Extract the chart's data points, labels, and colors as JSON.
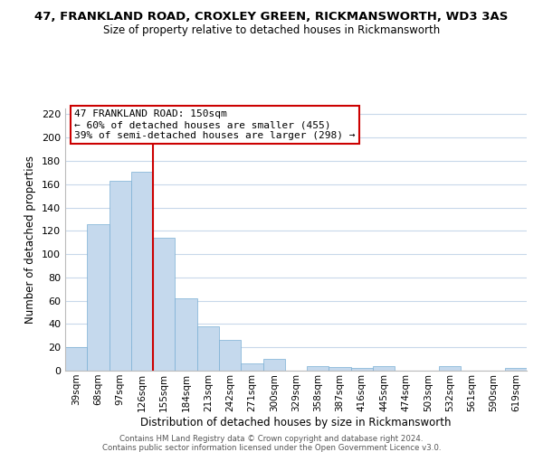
{
  "title": "47, FRANKLAND ROAD, CROXLEY GREEN, RICKMANSWORTH, WD3 3AS",
  "subtitle": "Size of property relative to detached houses in Rickmansworth",
  "xlabel": "Distribution of detached houses by size in Rickmansworth",
  "ylabel": "Number of detached properties",
  "bar_color": "#c5d9ed",
  "bar_edge_color": "#7aafd4",
  "categories": [
    "39sqm",
    "68sqm",
    "97sqm",
    "126sqm",
    "155sqm",
    "184sqm",
    "213sqm",
    "242sqm",
    "271sqm",
    "300sqm",
    "329sqm",
    "358sqm",
    "387sqm",
    "416sqm",
    "445sqm",
    "474sqm",
    "503sqm",
    "532sqm",
    "561sqm",
    "590sqm",
    "619sqm"
  ],
  "values": [
    20,
    126,
    163,
    171,
    114,
    62,
    38,
    26,
    6,
    10,
    0,
    4,
    3,
    2,
    4,
    0,
    0,
    4,
    0,
    0,
    2
  ],
  "ylim": [
    0,
    225
  ],
  "yticks": [
    0,
    20,
    40,
    60,
    80,
    100,
    120,
    140,
    160,
    180,
    200,
    220
  ],
  "marker_color": "#cc0000",
  "annotation_title": "47 FRANKLAND ROAD: 150sqm",
  "annotation_line1": "← 60% of detached houses are smaller (455)",
  "annotation_line2": "39% of semi-detached houses are larger (298) →",
  "annotation_box_color": "#ffffff",
  "annotation_box_edge": "#cc0000",
  "footer1": "Contains HM Land Registry data © Crown copyright and database right 2024.",
  "footer2": "Contains public sector information licensed under the Open Government Licence v3.0.",
  "background_color": "#ffffff",
  "grid_color": "#c8d8ea"
}
